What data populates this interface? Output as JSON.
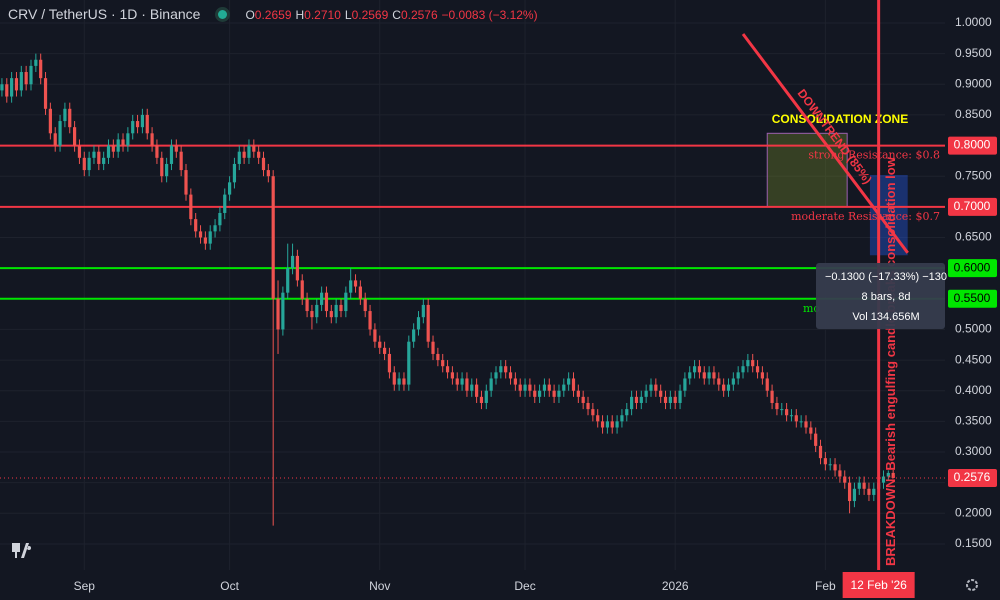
{
  "chart_data": {
    "type": "candlestick",
    "title": "CRV / TetherUS · 1D · Binance",
    "legend": [
      {
        "key": "O",
        "value": 0.2659
      },
      {
        "key": "H",
        "value": 0.271,
        "label": "0.2710"
      },
      {
        "key": "L",
        "value": 0.2569
      },
      {
        "key": "C",
        "value": 0.2576
      }
    ],
    "change": "−0.0083 (−3.12%)",
    "up_color": "#26a69a",
    "down_color": "#ef5350",
    "ohlc": [
      [
        0.89,
        0.91,
        0.88,
        0.9
      ],
      [
        0.9,
        0.91,
        0.87,
        0.88
      ],
      [
        0.88,
        0.92,
        0.87,
        0.91
      ],
      [
        0.91,
        0.92,
        0.88,
        0.89
      ],
      [
        0.89,
        0.93,
        0.88,
        0.92
      ],
      [
        0.92,
        0.93,
        0.89,
        0.9
      ],
      [
        0.9,
        0.94,
        0.89,
        0.93
      ],
      [
        0.93,
        0.95,
        0.92,
        0.94
      ],
      [
        0.94,
        0.95,
        0.9,
        0.91
      ],
      [
        0.91,
        0.92,
        0.85,
        0.86
      ],
      [
        0.86,
        0.87,
        0.81,
        0.82
      ],
      [
        0.82,
        0.83,
        0.79,
        0.8
      ],
      [
        0.8,
        0.85,
        0.79,
        0.84
      ],
      [
        0.84,
        0.87,
        0.83,
        0.86
      ],
      [
        0.86,
        0.87,
        0.82,
        0.83
      ],
      [
        0.83,
        0.84,
        0.79,
        0.8
      ],
      [
        0.8,
        0.81,
        0.77,
        0.78
      ],
      [
        0.78,
        0.79,
        0.75,
        0.76
      ],
      [
        0.76,
        0.79,
        0.75,
        0.78
      ],
      [
        0.78,
        0.8,
        0.77,
        0.79
      ],
      [
        0.79,
        0.8,
        0.76,
        0.77
      ],
      [
        0.77,
        0.79,
        0.76,
        0.78
      ],
      [
        0.78,
        0.81,
        0.77,
        0.8
      ],
      [
        0.8,
        0.81,
        0.78,
        0.79
      ],
      [
        0.79,
        0.82,
        0.78,
        0.81
      ],
      [
        0.81,
        0.82,
        0.79,
        0.8
      ],
      [
        0.8,
        0.83,
        0.79,
        0.82
      ],
      [
        0.82,
        0.85,
        0.81,
        0.84
      ],
      [
        0.84,
        0.85,
        0.82,
        0.83
      ],
      [
        0.83,
        0.86,
        0.82,
        0.85
      ],
      [
        0.85,
        0.86,
        0.81,
        0.82
      ],
      [
        0.82,
        0.83,
        0.79,
        0.8
      ],
      [
        0.8,
        0.81,
        0.77,
        0.78
      ],
      [
        0.78,
        0.79,
        0.74,
        0.75
      ],
      [
        0.75,
        0.78,
        0.74,
        0.77
      ],
      [
        0.77,
        0.81,
        0.76,
        0.8
      ],
      [
        0.8,
        0.81,
        0.78,
        0.79
      ],
      [
        0.79,
        0.8,
        0.75,
        0.76
      ],
      [
        0.76,
        0.77,
        0.71,
        0.72
      ],
      [
        0.72,
        0.73,
        0.67,
        0.68
      ],
      [
        0.68,
        0.69,
        0.65,
        0.66
      ],
      [
        0.66,
        0.67,
        0.64,
        0.65
      ],
      [
        0.65,
        0.66,
        0.63,
        0.64
      ],
      [
        0.64,
        0.67,
        0.63,
        0.66
      ],
      [
        0.66,
        0.68,
        0.65,
        0.67
      ],
      [
        0.67,
        0.7,
        0.66,
        0.69
      ],
      [
        0.69,
        0.73,
        0.68,
        0.72
      ],
      [
        0.72,
        0.75,
        0.71,
        0.74
      ],
      [
        0.74,
        0.78,
        0.73,
        0.77
      ],
      [
        0.77,
        0.8,
        0.76,
        0.79
      ],
      [
        0.79,
        0.8,
        0.77,
        0.78
      ],
      [
        0.78,
        0.81,
        0.77,
        0.8
      ],
      [
        0.8,
        0.81,
        0.78,
        0.79
      ],
      [
        0.79,
        0.8,
        0.77,
        0.78
      ],
      [
        0.78,
        0.79,
        0.75,
        0.76
      ],
      [
        0.76,
        0.77,
        0.74,
        0.75
      ],
      [
        0.75,
        0.76,
        0.18,
        0.55
      ],
      [
        0.55,
        0.58,
        0.46,
        0.5
      ],
      [
        0.5,
        0.57,
        0.49,
        0.56
      ],
      [
        0.56,
        0.64,
        0.55,
        0.6
      ],
      [
        0.6,
        0.64,
        0.59,
        0.62
      ],
      [
        0.62,
        0.63,
        0.57,
        0.58
      ],
      [
        0.58,
        0.59,
        0.54,
        0.55
      ],
      [
        0.55,
        0.56,
        0.52,
        0.53
      ],
      [
        0.53,
        0.54,
        0.5,
        0.52
      ],
      [
        0.52,
        0.55,
        0.51,
        0.54
      ],
      [
        0.54,
        0.57,
        0.53,
        0.56
      ],
      [
        0.56,
        0.57,
        0.52,
        0.53
      ],
      [
        0.53,
        0.54,
        0.51,
        0.52
      ],
      [
        0.52,
        0.55,
        0.51,
        0.54
      ],
      [
        0.54,
        0.55,
        0.52,
        0.53
      ],
      [
        0.53,
        0.57,
        0.52,
        0.56
      ],
      [
        0.56,
        0.6,
        0.55,
        0.58
      ],
      [
        0.58,
        0.59,
        0.56,
        0.57
      ],
      [
        0.57,
        0.58,
        0.54,
        0.55
      ],
      [
        0.55,
        0.56,
        0.52,
        0.53
      ],
      [
        0.53,
        0.54,
        0.49,
        0.5
      ],
      [
        0.5,
        0.51,
        0.47,
        0.48
      ],
      [
        0.48,
        0.49,
        0.46,
        0.47
      ],
      [
        0.47,
        0.48,
        0.45,
        0.46
      ],
      [
        0.46,
        0.47,
        0.42,
        0.43
      ],
      [
        0.43,
        0.44,
        0.4,
        0.41
      ],
      [
        0.41,
        0.43,
        0.4,
        0.42
      ],
      [
        0.42,
        0.43,
        0.4,
        0.41
      ],
      [
        0.41,
        0.49,
        0.4,
        0.48
      ],
      [
        0.48,
        0.51,
        0.47,
        0.5
      ],
      [
        0.5,
        0.53,
        0.49,
        0.52
      ],
      [
        0.52,
        0.55,
        0.51,
        0.54
      ],
      [
        0.54,
        0.55,
        0.47,
        0.48
      ],
      [
        0.48,
        0.49,
        0.45,
        0.46
      ],
      [
        0.46,
        0.47,
        0.44,
        0.45
      ],
      [
        0.45,
        0.46,
        0.43,
        0.44
      ],
      [
        0.44,
        0.45,
        0.42,
        0.43
      ],
      [
        0.43,
        0.44,
        0.41,
        0.42
      ],
      [
        0.42,
        0.43,
        0.4,
        0.41
      ],
      [
        0.41,
        0.43,
        0.4,
        0.42
      ],
      [
        0.42,
        0.43,
        0.39,
        0.4
      ],
      [
        0.4,
        0.42,
        0.39,
        0.41
      ],
      [
        0.41,
        0.42,
        0.38,
        0.39
      ],
      [
        0.39,
        0.4,
        0.37,
        0.38
      ],
      [
        0.38,
        0.41,
        0.37,
        0.4
      ],
      [
        0.4,
        0.43,
        0.39,
        0.42
      ],
      [
        0.42,
        0.44,
        0.41,
        0.43
      ],
      [
        0.43,
        0.45,
        0.42,
        0.44
      ],
      [
        0.44,
        0.45,
        0.42,
        0.43
      ],
      [
        0.43,
        0.44,
        0.41,
        0.42
      ],
      [
        0.42,
        0.43,
        0.4,
        0.41
      ],
      [
        0.41,
        0.42,
        0.39,
        0.4
      ],
      [
        0.4,
        0.42,
        0.39,
        0.41
      ],
      [
        0.41,
        0.42,
        0.39,
        0.4
      ],
      [
        0.4,
        0.41,
        0.38,
        0.39
      ],
      [
        0.39,
        0.41,
        0.38,
        0.4
      ],
      [
        0.4,
        0.42,
        0.39,
        0.41
      ],
      [
        0.41,
        0.42,
        0.39,
        0.4
      ],
      [
        0.4,
        0.41,
        0.38,
        0.39
      ],
      [
        0.39,
        0.41,
        0.38,
        0.4
      ],
      [
        0.4,
        0.42,
        0.39,
        0.41
      ],
      [
        0.41,
        0.43,
        0.4,
        0.42
      ],
      [
        0.42,
        0.43,
        0.39,
        0.4
      ],
      [
        0.4,
        0.41,
        0.38,
        0.39
      ],
      [
        0.39,
        0.4,
        0.37,
        0.38
      ],
      [
        0.38,
        0.39,
        0.36,
        0.37
      ],
      [
        0.37,
        0.38,
        0.35,
        0.36
      ],
      [
        0.36,
        0.37,
        0.34,
        0.35
      ],
      [
        0.35,
        0.36,
        0.33,
        0.34
      ],
      [
        0.34,
        0.36,
        0.33,
        0.35
      ],
      [
        0.35,
        0.36,
        0.33,
        0.34
      ],
      [
        0.34,
        0.36,
        0.33,
        0.35
      ],
      [
        0.35,
        0.37,
        0.34,
        0.36
      ],
      [
        0.36,
        0.38,
        0.35,
        0.37
      ],
      [
        0.37,
        0.4,
        0.36,
        0.39
      ],
      [
        0.39,
        0.4,
        0.37,
        0.38
      ],
      [
        0.38,
        0.4,
        0.37,
        0.39
      ],
      [
        0.39,
        0.41,
        0.38,
        0.4
      ],
      [
        0.4,
        0.42,
        0.39,
        0.41
      ],
      [
        0.41,
        0.42,
        0.39,
        0.4
      ],
      [
        0.4,
        0.41,
        0.38,
        0.39
      ],
      [
        0.39,
        0.4,
        0.37,
        0.38
      ],
      [
        0.38,
        0.4,
        0.37,
        0.39
      ],
      [
        0.39,
        0.4,
        0.37,
        0.38
      ],
      [
        0.38,
        0.41,
        0.37,
        0.4
      ],
      [
        0.4,
        0.43,
        0.39,
        0.42
      ],
      [
        0.42,
        0.44,
        0.41,
        0.43
      ],
      [
        0.43,
        0.45,
        0.42,
        0.44
      ],
      [
        0.44,
        0.45,
        0.42,
        0.43
      ],
      [
        0.43,
        0.44,
        0.41,
        0.42
      ],
      [
        0.42,
        0.44,
        0.41,
        0.43
      ],
      [
        0.43,
        0.44,
        0.41,
        0.42
      ],
      [
        0.42,
        0.43,
        0.4,
        0.41
      ],
      [
        0.41,
        0.42,
        0.39,
        0.4
      ],
      [
        0.4,
        0.42,
        0.39,
        0.41
      ],
      [
        0.41,
        0.43,
        0.4,
        0.42
      ],
      [
        0.42,
        0.44,
        0.41,
        0.43
      ],
      [
        0.43,
        0.45,
        0.42,
        0.44
      ],
      [
        0.44,
        0.46,
        0.43,
        0.45
      ],
      [
        0.45,
        0.46,
        0.43,
        0.44
      ],
      [
        0.44,
        0.45,
        0.42,
        0.43
      ],
      [
        0.43,
        0.44,
        0.41,
        0.42
      ],
      [
        0.42,
        0.43,
        0.39,
        0.4
      ],
      [
        0.4,
        0.41,
        0.37,
        0.38
      ],
      [
        0.38,
        0.39,
        0.36,
        0.37
      ],
      [
        0.37,
        0.38,
        0.36,
        0.37
      ],
      [
        0.37,
        0.38,
        0.35,
        0.36
      ],
      [
        0.36,
        0.37,
        0.35,
        0.36
      ],
      [
        0.36,
        0.37,
        0.34,
        0.35
      ],
      [
        0.35,
        0.36,
        0.34,
        0.35
      ],
      [
        0.35,
        0.36,
        0.33,
        0.34
      ],
      [
        0.34,
        0.35,
        0.32,
        0.33
      ],
      [
        0.33,
        0.34,
        0.3,
        0.31
      ],
      [
        0.31,
        0.32,
        0.28,
        0.29
      ],
      [
        0.29,
        0.3,
        0.27,
        0.28
      ],
      [
        0.28,
        0.29,
        0.27,
        0.28
      ],
      [
        0.28,
        0.29,
        0.26,
        0.27
      ],
      [
        0.27,
        0.28,
        0.25,
        0.26
      ],
      [
        0.26,
        0.27,
        0.24,
        0.25
      ],
      [
        0.25,
        0.26,
        0.2,
        0.22
      ],
      [
        0.22,
        0.25,
        0.21,
        0.24
      ],
      [
        0.24,
        0.26,
        0.23,
        0.25
      ],
      [
        0.25,
        0.26,
        0.23,
        0.24
      ],
      [
        0.24,
        0.25,
        0.22,
        0.23
      ],
      [
        0.23,
        0.25,
        0.22,
        0.24
      ],
      [
        0.24,
        0.26,
        0.23,
        0.25
      ],
      [
        0.25,
        0.27,
        0.24,
        0.26
      ],
      [
        0.26,
        0.27,
        0.255,
        0.2659
      ],
      [
        0.2659,
        0.271,
        0.2569,
        0.2576
      ]
    ],
    "xlim": [
      -0.4,
      194.7
    ],
    "xticks": [
      {
        "value": 17,
        "label": "Sep"
      },
      {
        "value": 47,
        "label": "Oct"
      },
      {
        "value": 78,
        "label": "Nov"
      },
      {
        "value": 108,
        "label": "Dec"
      },
      {
        "value": 139,
        "label": "2026"
      },
      {
        "value": 170,
        "label": "Feb"
      }
    ],
    "ylim": [
      0.1075,
      1.0375
    ],
    "yticks": [
      {
        "value": 0.15,
        "label": "0.1500"
      },
      {
        "value": 0.2,
        "label": "0.2000"
      },
      {
        "value": 0.25,
        "label": "0.2500"
      },
      {
        "value": 0.3,
        "label": "0.3000"
      },
      {
        "value": 0.35,
        "label": "0.3500"
      },
      {
        "value": 0.4,
        "label": "0.4000"
      },
      {
        "value": 0.45,
        "label": "0.4500"
      },
      {
        "value": 0.5,
        "label": "0.5000"
      },
      {
        "value": 0.55,
        "label": "0.5500"
      },
      {
        "value": 0.6,
        "label": "0.6000"
      },
      {
        "value": 0.65,
        "label": "0.6500"
      },
      {
        "value": 0.7,
        "label": "0.7000"
      },
      {
        "value": 0.75,
        "label": "0.7500"
      },
      {
        "value": 0.8,
        "label": "0.8000"
      },
      {
        "value": 0.85,
        "label": "0.8500"
      },
      {
        "value": 0.9,
        "label": "0.9000"
      },
      {
        "value": 0.95,
        "label": "0.9500"
      },
      {
        "value": 1.0,
        "label": "1.0000"
      }
    ],
    "grid": true,
    "price_lines": [
      {
        "value": 0.8,
        "label": "0.8000",
        "color": "#f23645"
      },
      {
        "value": 0.7,
        "label": "0.7000",
        "color": "#f23645"
      },
      {
        "value": 0.6,
        "label": "0.6000",
        "color": "#00e600"
      },
      {
        "value": 0.55,
        "label": "0.5500",
        "color": "#00e600"
      }
    ],
    "last_price": {
      "value": 0.2576,
      "color": "#f23645"
    },
    "crosshair": {
      "x": 181,
      "label": "12 Feb '26"
    },
    "zone": {
      "text": "CONSOLIDATION ZONE",
      "x": [
        158,
        174.5
      ],
      "y": [
        0.7,
        0.82
      ]
    },
    "trend": {
      "text": "DOWNTREND (85%)",
      "x": [
        153,
        187
      ],
      "y": [
        0.982,
        0.625
      ]
    },
    "breakdown": {
      "text": "BREAKDOWN: Bearish engulfing candle breaks consolidation low",
      "x": 181
    },
    "box": {
      "x": [
        179.2,
        187
      ],
      "y": [
        0.621,
        0.752
      ]
    },
    "labels": [
      {
        "text": "strong Resistance: $0.8",
        "value": 0.8
      },
      {
        "text": "moderate Resistance: $0.7",
        "value": 0.7
      },
      {
        "text": "mo",
        "value": 0.55
      }
    ],
    "tooltip": [
      "−0.1300 (−17.33%) −130",
      "8 bars, 8d",
      "Vol 134.656M"
    ]
  }
}
